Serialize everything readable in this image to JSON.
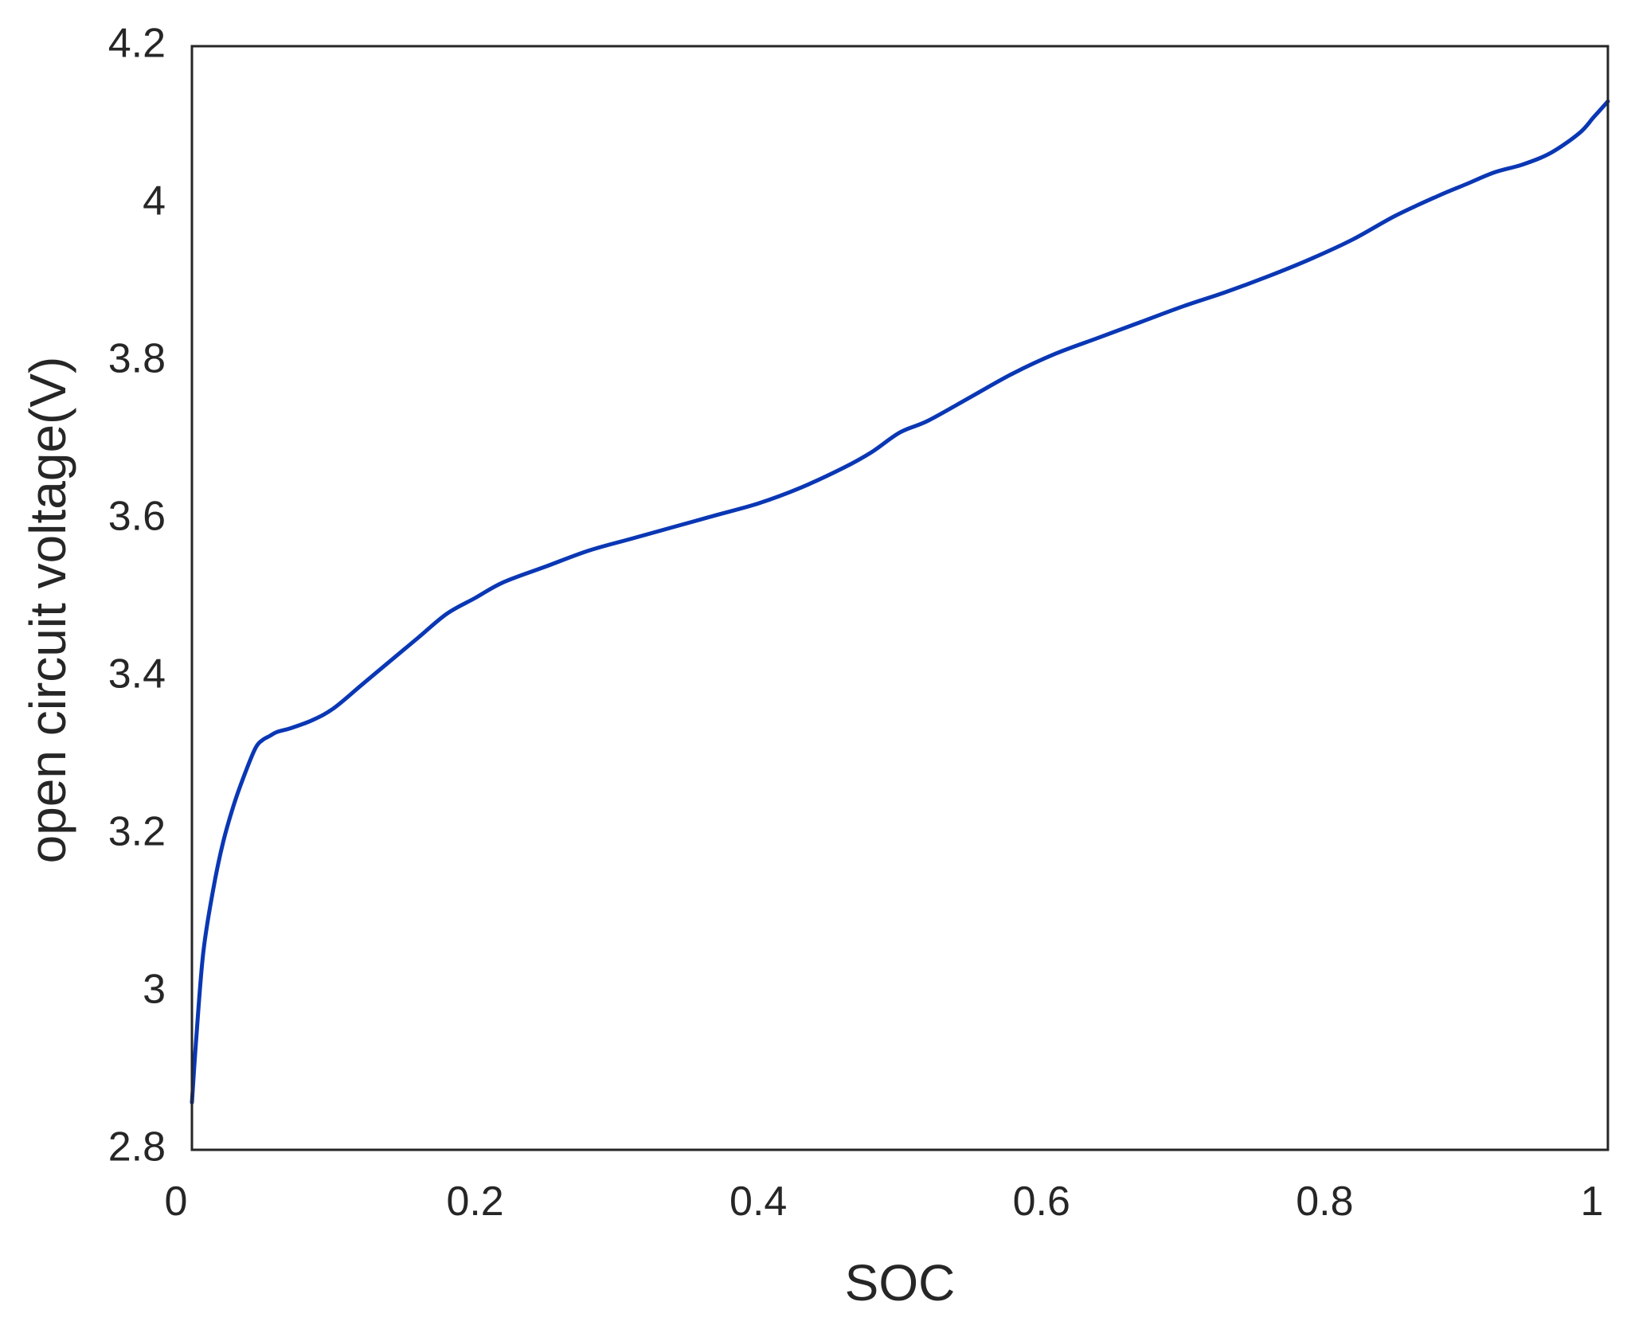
{
  "chart_data": {
    "type": "line",
    "title": "",
    "xlabel": "SOC",
    "ylabel": "open circuit voltage(V)",
    "xlim": [
      0,
      1
    ],
    "ylim": [
      2.8,
      4.2
    ],
    "grid": false,
    "xticks": [
      {
        "value": 0,
        "label": "0"
      },
      {
        "value": 0.2,
        "label": "0.2"
      },
      {
        "value": 0.4,
        "label": "0.4"
      },
      {
        "value": 0.6,
        "label": "0.6"
      },
      {
        "value": 0.8,
        "label": "0.8"
      },
      {
        "value": 1,
        "label": "1"
      }
    ],
    "yticks": [
      {
        "value": 2.8,
        "label": "2.8"
      },
      {
        "value": 3,
        "label": "3"
      },
      {
        "value": 3.2,
        "label": "3.2"
      },
      {
        "value": 3.4,
        "label": "3.4"
      },
      {
        "value": 3.6,
        "label": "3.6"
      },
      {
        "value": 3.8,
        "label": "3.8"
      },
      {
        "value": 4,
        "label": "4"
      },
      {
        "value": 4.2,
        "label": "4.2"
      }
    ],
    "series": [
      {
        "color": "#0a37b4",
        "x": [
          0.0,
          0.003,
          0.008,
          0.015,
          0.022,
          0.03,
          0.038,
          0.045,
          0.05,
          0.055,
          0.06,
          0.07,
          0.085,
          0.1,
          0.12,
          0.14,
          0.16,
          0.18,
          0.2,
          0.22,
          0.25,
          0.28,
          0.31,
          0.34,
          0.37,
          0.4,
          0.43,
          0.46,
          0.48,
          0.5,
          0.52,
          0.55,
          0.58,
          0.61,
          0.64,
          0.67,
          0.7,
          0.73,
          0.76,
          0.79,
          0.82,
          0.85,
          0.88,
          0.9,
          0.92,
          0.94,
          0.96,
          0.98,
          0.99,
          1.0
        ],
        "y": [
          2.86,
          2.94,
          3.05,
          3.13,
          3.19,
          3.24,
          3.28,
          3.31,
          3.32,
          3.325,
          3.33,
          3.335,
          3.345,
          3.36,
          3.39,
          3.42,
          3.45,
          3.48,
          3.5,
          3.52,
          3.54,
          3.56,
          3.575,
          3.59,
          3.605,
          3.62,
          3.64,
          3.665,
          3.685,
          3.71,
          3.725,
          3.755,
          3.785,
          3.81,
          3.83,
          3.85,
          3.87,
          3.888,
          3.908,
          3.93,
          3.955,
          3.985,
          4.01,
          4.025,
          4.04,
          4.05,
          4.065,
          4.09,
          4.11,
          4.13
        ]
      }
    ]
  }
}
